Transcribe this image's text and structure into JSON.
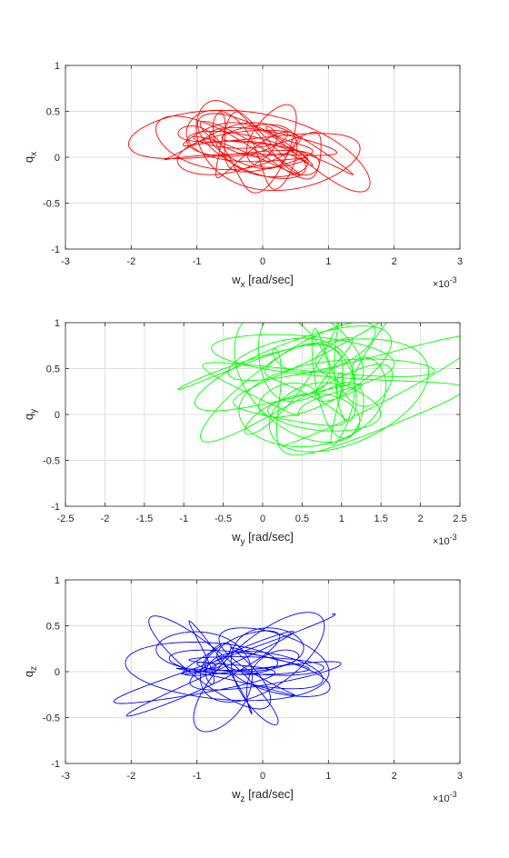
{
  "chart_data": [
    {
      "type": "line",
      "color": "#ff0000",
      "xlabel": {
        "base": "w",
        "sub": "x",
        "rest": " [rad/sec]"
      },
      "ylabel": {
        "base": "q",
        "sub": "x"
      },
      "x_exponent": {
        "prefix": "×10",
        "power": "-3"
      },
      "xlim": [
        -3,
        3
      ],
      "ylim": [
        -1,
        1
      ],
      "xticks": [
        -3,
        -2,
        -1,
        0,
        1,
        2,
        3
      ],
      "xtick_labels": [
        "-3",
        "-2",
        "-1",
        "0",
        "1",
        "2",
        "3"
      ],
      "yticks": [
        -1,
        -0.5,
        0,
        0.5,
        1
      ],
      "ytick_labels": [
        "-1",
        "-0.5",
        "0",
        "0.5",
        "1"
      ],
      "grid": true,
      "seed": 11,
      "x_center": -0.1,
      "x_spread": 1.1,
      "y_center": 0.1,
      "y_spread": 0.38
    },
    {
      "type": "line",
      "color": "#00ff00",
      "xlabel": {
        "base": "w",
        "sub": "y",
        "rest": " [rad/sec]"
      },
      "ylabel": {
        "base": "q",
        "sub": "y"
      },
      "x_exponent": {
        "prefix": "×10",
        "power": "-3"
      },
      "xlim": [
        -2.5,
        2.5
      ],
      "ylim": [
        -1,
        1
      ],
      "xticks": [
        -2.5,
        -2,
        -1.5,
        -1,
        -0.5,
        0,
        0.5,
        1,
        1.5,
        2,
        2.5
      ],
      "xtick_labels": [
        "-2.5",
        "-2",
        "-1.5",
        "-1",
        "-0.5",
        "0",
        "0.5",
        "1",
        "1.5",
        "2",
        "2.5"
      ],
      "yticks": [
        -1,
        -0.5,
        0,
        0.5,
        1
      ],
      "ytick_labels": [
        "-1",
        "-0.5",
        "0",
        "0.5",
        "1"
      ],
      "grid": true,
      "seed": 23,
      "x_center": 0.7,
      "x_spread": 1.05,
      "y_center": 0.35,
      "y_spread": 0.5
    },
    {
      "type": "line",
      "color": "#0000ff",
      "xlabel": {
        "base": "w",
        "sub": "z",
        "rest": " [rad/sec]"
      },
      "ylabel": {
        "base": "q",
        "sub": "z"
      },
      "x_exponent": {
        "prefix": "×10",
        "power": "-3"
      },
      "xlim": [
        -3,
        3
      ],
      "ylim": [
        -1,
        1
      ],
      "xticks": [
        -3,
        -2,
        -1,
        0,
        1,
        2,
        3
      ],
      "xtick_labels": [
        "-3",
        "-2",
        "-1",
        "0",
        "1",
        "2",
        "3"
      ],
      "yticks": [
        -1,
        -0.5,
        0,
        0.5,
        1
      ],
      "ytick_labels": [
        "-1",
        "-0.5",
        "0",
        "0.5",
        "1"
      ],
      "grid": true,
      "seed": 37,
      "x_center": -0.4,
      "x_spread": 1.15,
      "y_center": 0.05,
      "y_spread": 0.38
    }
  ]
}
